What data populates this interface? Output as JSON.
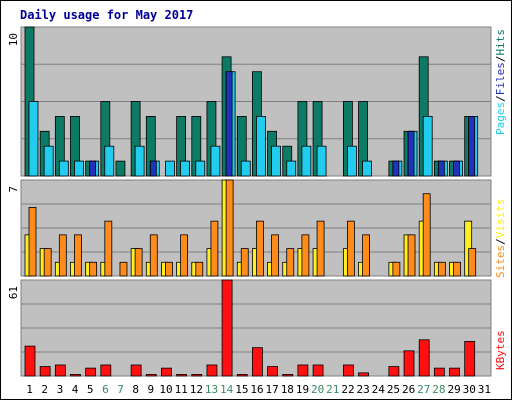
{
  "chart_data": {
    "type": "bar",
    "title": "Daily usage for May 2017",
    "days": [
      1,
      2,
      3,
      4,
      5,
      6,
      7,
      8,
      9,
      10,
      11,
      12,
      13,
      14,
      15,
      16,
      17,
      18,
      19,
      20,
      21,
      22,
      23,
      24,
      25,
      26,
      27,
      28,
      29,
      30,
      31
    ],
    "weekend_days": [
      6,
      7,
      13,
      14,
      20,
      21,
      27,
      28
    ],
    "panels": [
      {
        "id": "hits",
        "max_label": "10",
        "ymax": 10,
        "legend": [
          "Pages",
          "Files",
          "Hits"
        ],
        "series": [
          {
            "name": "Hits",
            "color": "#0d7a66",
            "values": [
              10,
              3,
              4,
              4,
              1,
              5,
              1,
              5,
              4,
              0,
              4,
              4,
              5,
              8,
              4,
              7,
              3,
              2,
              5,
              5,
              0,
              5,
              5,
              0,
              1,
              3,
              8,
              1,
              1,
              4,
              0
            ]
          },
          {
            "name": "Files",
            "color": "#22ccee",
            "values": [
              5,
              2,
              1,
              1,
              1,
              2,
              0,
              2,
              1,
              1,
              1,
              1,
              2,
              7,
              1,
              4,
              2,
              1,
              2,
              2,
              0,
              2,
              1,
              0,
              1,
              3,
              4,
              1,
              1,
              4,
              0
            ]
          },
          {
            "name": "Pages",
            "color": "#2233bb",
            "values": [
              0,
              0,
              0,
              0,
              1,
              0,
              0,
              0,
              1,
              0,
              0,
              0,
              0,
              7,
              0,
              0,
              0,
              0,
              0,
              0,
              0,
              0,
              0,
              0,
              1,
              3,
              0,
              1,
              1,
              4,
              0
            ]
          }
        ]
      },
      {
        "id": "visits",
        "max_label": "7",
        "ymax": 7,
        "legend": [
          "Sites",
          "/",
          "Visits"
        ],
        "series": [
          {
            "name": "Visits",
            "color": "#ffee22",
            "values": [
              3,
              2,
              1,
              1,
              1,
              1,
              0,
              2,
              1,
              1,
              1,
              1,
              2,
              7,
              1,
              2,
              1,
              1,
              2,
              2,
              0,
              2,
              1,
              0,
              1,
              3,
              4,
              1,
              1,
              4,
              0
            ]
          },
          {
            "name": "Sites",
            "color": "#ff8c1a",
            "values": [
              5,
              2,
              3,
              3,
              1,
              4,
              1,
              2,
              3,
              1,
              3,
              1,
              4,
              7,
              2,
              4,
              3,
              2,
              3,
              4,
              0,
              4,
              3,
              0,
              1,
              3,
              6,
              1,
              1,
              2,
              0
            ]
          }
        ]
      },
      {
        "id": "kbytes",
        "max_label": "61",
        "ymax": 61,
        "legend": [
          "KBytes"
        ],
        "series": [
          {
            "name": "KBytes",
            "color": "#ff1111",
            "values": [
              19,
              6,
              7,
              1,
              5,
              7,
              0,
              7,
              1,
              5,
              1,
              1,
              7,
              61,
              1,
              18,
              6,
              1,
              7,
              7,
              0,
              7,
              2,
              0,
              6,
              16,
              23,
              5,
              5,
              22,
              0
            ]
          }
        ]
      }
    ]
  }
}
